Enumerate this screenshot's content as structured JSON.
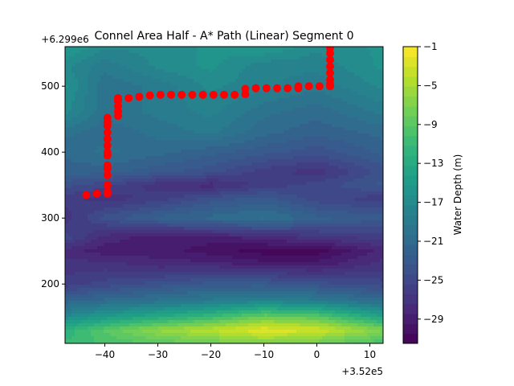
{
  "chart_data": {
    "type": "heatmap",
    "subtype": "filled-contour",
    "title": "Connel Area Half - A* Path (Linear) Segment 0",
    "x_offset_label": "+3.52e5",
    "y_offset_label": "+6.299e6",
    "xlim": [
      -47.5,
      12.5
    ],
    "ylim": [
      110,
      560
    ],
    "x_ticks": [
      -40,
      -30,
      -20,
      -10,
      0,
      10
    ],
    "x_tick_labels": [
      "−40",
      "−30",
      "−20",
      "−10",
      "0",
      "10"
    ],
    "y_ticks": [
      200,
      300,
      400,
      500
    ],
    "y_tick_labels": [
      "200",
      "300",
      "400",
      "500"
    ],
    "colorbar": {
      "label": "Water Depth (m)",
      "range": [
        -31.5,
        -1
      ],
      "ticks": [
        -1,
        -5,
        -9,
        -13,
        -17,
        -21,
        -25,
        -29
      ],
      "tick_labels": [
        "−1",
        "−5",
        "−9",
        "−13",
        "−17",
        "−21",
        "−25",
        "−29"
      ],
      "colormap": "viridis",
      "levels": 30
    },
    "depth_field": {
      "x": [
        -47.5,
        -40,
        -30,
        -20,
        -10,
        0,
        12.5
      ],
      "y": [
        110,
        130,
        150,
        175,
        200,
        230,
        250,
        270,
        300,
        330,
        350,
        370,
        400,
        430,
        460,
        500,
        530,
        560
      ],
      "z": [
        [
          -11,
          -10,
          -9,
          -8,
          -7,
          -8,
          -10
        ],
        [
          -12,
          -9,
          -6,
          -4,
          -2,
          -3,
          -7
        ],
        [
          -17,
          -15,
          -13,
          -11,
          -8,
          -9,
          -14
        ],
        [
          -22,
          -21,
          -20,
          -19,
          -18,
          -19,
          -21
        ],
        [
          -26,
          -25,
          -24,
          -23,
          -23,
          -24,
          -25
        ],
        [
          -27,
          -27,
          -28,
          -28,
          -29,
          -29,
          -27
        ],
        [
          -28,
          -29,
          -29,
          -30,
          -31,
          -31,
          -28
        ],
        [
          -25,
          -28,
          -29,
          -29,
          -28,
          -27,
          -26
        ],
        [
          -27,
          -24,
          -22,
          -21,
          -20,
          -22,
          -23
        ],
        [
          -26,
          -27,
          -26,
          -24,
          -23,
          -25,
          -26
        ],
        [
          -24,
          -25,
          -27,
          -28,
          -26,
          -25,
          -23
        ],
        [
          -22,
          -22,
          -23,
          -24,
          -26,
          -27,
          -24
        ],
        [
          -21,
          -20,
          -21,
          -22,
          -23,
          -24,
          -22
        ],
        [
          -20,
          -21,
          -20,
          -19,
          -21,
          -22,
          -21
        ],
        [
          -17,
          -20,
          -19,
          -18,
          -20,
          -21,
          -19
        ],
        [
          -16,
          -20,
          -19,
          -17,
          -18,
          -19,
          -17
        ],
        [
          -17,
          -19,
          -17,
          -16,
          -18,
          -18,
          -16
        ],
        [
          -15,
          -17,
          -17,
          -16,
          -15,
          -17,
          -16
        ]
      ]
    },
    "path": {
      "name": "A* Path",
      "color": "#ff0000",
      "x": [
        -43.5,
        -41.5,
        -39.5,
        -39.5,
        -39.5,
        -39.5,
        -39.5,
        -39.5,
        -39.5,
        -39.5,
        -39.5,
        -39.5,
        -39.5,
        -39.5,
        -39.5,
        -39.5,
        -37.5,
        -37.5,
        -37.5,
        -37.5,
        -37.5,
        -35.5,
        -33.5,
        -31.5,
        -29.5,
        -27.5,
        -25.5,
        -23.5,
        -21.5,
        -19.5,
        -17.5,
        -15.5,
        -13.5,
        -13.5,
        -11.5,
        -9.5,
        -7.5,
        -5.5,
        -3.5,
        -3.5,
        -1.5,
        0.5,
        2.5,
        2.5,
        2.5,
        2.5,
        2.5,
        2.5,
        2.5,
        2.5
      ],
      "y": [
        335,
        337,
        337,
        350,
        365,
        380,
        395,
        410,
        420,
        430,
        440,
        452,
        340,
        375,
        400,
        445,
        455,
        462,
        470,
        478,
        482,
        482,
        484,
        486,
        487,
        487,
        487,
        487,
        487,
        487,
        487,
        487,
        488,
        496,
        497,
        497,
        497,
        497,
        497,
        500,
        500,
        500,
        500,
        510,
        520,
        530,
        540,
        550,
        558,
        503
      ]
    }
  }
}
